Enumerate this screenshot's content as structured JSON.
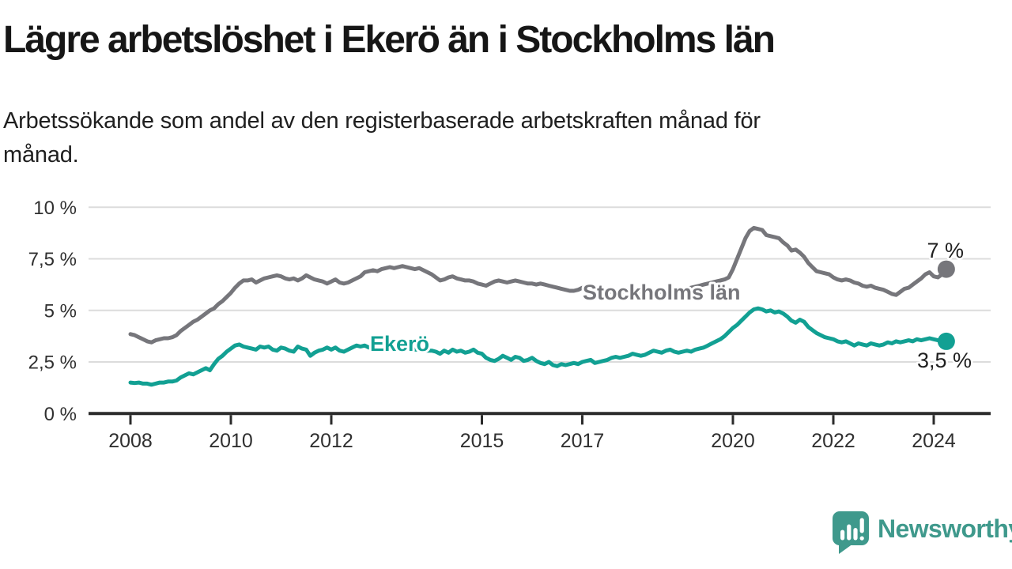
{
  "footer": {
    "brand": "Newsworthy",
    "brand_color": "#3F998C"
  },
  "colors": {
    "background": "#ffffff",
    "grid": "#dcdcdc",
    "axis": "#2b2b2b",
    "tick_label": "#303030",
    "annotation_text": "#1f1f1f",
    "title_text": "#161616"
  },
  "chart_data": {
    "type": "line",
    "title": "Lägre arbetslöshet i Ekerö än i Stockholms län",
    "subtitle": "Arbetssökande som andel av den registerbaserade arbetskraften månad för månad.",
    "unit": "%",
    "ylim": [
      0,
      10
    ],
    "grid": true,
    "legend": "inline-series-labels",
    "y_ticks": [
      {
        "value": 0,
        "label": "0 %"
      },
      {
        "value": 2.5,
        "label": "2,5 %"
      },
      {
        "value": 5,
        "label": "5 %"
      },
      {
        "value": 7.5,
        "label": "7,5 %"
      },
      {
        "value": 10,
        "label": "10 %"
      }
    ],
    "x_ticks": [
      {
        "value": 2008,
        "label": "2008"
      },
      {
        "value": 2010,
        "label": "2010"
      },
      {
        "value": 2012,
        "label": "2012"
      },
      {
        "value": 2015,
        "label": "2015"
      },
      {
        "value": 2017,
        "label": "2017"
      },
      {
        "value": 2020,
        "label": "2020"
      },
      {
        "value": 2022,
        "label": "2022"
      },
      {
        "value": 2024,
        "label": "2024"
      }
    ],
    "x_start_year": 2008,
    "x_end_year": 2024.25,
    "series": [
      {
        "id": "stockholms-lan",
        "name": "Stockholms län",
        "color": "#76767B",
        "end_label": "7 %",
        "end_value": 7.0,
        "start_year": 2008,
        "points_per_year": 12,
        "values": [
          3.85,
          3.8,
          3.7,
          3.6,
          3.5,
          3.45,
          3.55,
          3.6,
          3.65,
          3.65,
          3.7,
          3.8,
          4.0,
          4.15,
          4.3,
          4.45,
          4.55,
          4.7,
          4.85,
          5.0,
          5.1,
          5.3,
          5.45,
          5.65,
          5.85,
          6.1,
          6.3,
          6.45,
          6.45,
          6.5,
          6.35,
          6.45,
          6.55,
          6.6,
          6.65,
          6.7,
          6.65,
          6.55,
          6.5,
          6.55,
          6.45,
          6.55,
          6.7,
          6.6,
          6.5,
          6.45,
          6.4,
          6.3,
          6.4,
          6.5,
          6.35,
          6.3,
          6.35,
          6.45,
          6.55,
          6.65,
          6.85,
          6.9,
          6.95,
          6.9,
          7.0,
          7.05,
          7.1,
          7.05,
          7.1,
          7.15,
          7.1,
          7.05,
          7.0,
          7.05,
          6.95,
          6.85,
          6.75,
          6.6,
          6.45,
          6.5,
          6.6,
          6.65,
          6.55,
          6.5,
          6.45,
          6.45,
          6.4,
          6.3,
          6.25,
          6.2,
          6.3,
          6.4,
          6.45,
          6.4,
          6.35,
          6.4,
          6.45,
          6.4,
          6.35,
          6.3,
          6.3,
          6.25,
          6.3,
          6.25,
          6.2,
          6.15,
          6.1,
          6.05,
          6.0,
          5.95,
          5.95,
          6.0,
          6.1,
          6.05,
          6.05,
          6.0,
          6.0,
          5.95,
          5.95,
          5.9,
          5.9,
          5.9,
          5.9,
          5.9,
          5.9,
          5.85,
          5.85,
          5.85,
          5.9,
          5.9,
          5.9,
          5.9,
          5.95,
          5.95,
          5.95,
          6.0,
          6.0,
          6.05,
          6.1,
          6.15,
          6.2,
          6.25,
          6.3,
          6.35,
          6.4,
          6.45,
          6.5,
          6.6,
          7.0,
          7.5,
          8.0,
          8.5,
          8.85,
          9.0,
          8.95,
          8.9,
          8.65,
          8.6,
          8.55,
          8.5,
          8.3,
          8.15,
          7.9,
          7.95,
          7.8,
          7.6,
          7.3,
          7.1,
          6.9,
          6.85,
          6.8,
          6.75,
          6.6,
          6.5,
          6.45,
          6.5,
          6.45,
          6.35,
          6.3,
          6.2,
          6.15,
          6.2,
          6.1,
          6.05,
          6.0,
          5.9,
          5.8,
          5.75,
          5.9,
          6.05,
          6.1,
          6.25,
          6.4,
          6.55,
          6.75,
          6.85,
          6.65,
          6.6,
          6.75,
          7.0
        ]
      },
      {
        "id": "ekero",
        "name": "Ekerö",
        "color": "#12A093",
        "end_label": "3,5 %",
        "end_value": 3.5,
        "start_year": 2008,
        "points_per_year": 12,
        "values": [
          1.5,
          1.48,
          1.5,
          1.45,
          1.45,
          1.4,
          1.45,
          1.5,
          1.5,
          1.55,
          1.55,
          1.6,
          1.75,
          1.85,
          1.95,
          1.9,
          2.0,
          2.1,
          2.2,
          2.1,
          2.4,
          2.65,
          2.8,
          3.0,
          3.15,
          3.3,
          3.35,
          3.25,
          3.2,
          3.15,
          3.1,
          3.25,
          3.2,
          3.25,
          3.1,
          3.05,
          3.2,
          3.15,
          3.05,
          3.0,
          3.25,
          3.15,
          3.1,
          2.8,
          2.95,
          3.05,
          3.1,
          3.2,
          3.1,
          3.2,
          3.05,
          3.0,
          3.1,
          3.2,
          3.3,
          3.25,
          3.3,
          3.2,
          3.25,
          3.2,
          3.25,
          3.2,
          3.2,
          3.25,
          3.2,
          3.15,
          3.2,
          3.15,
          3.1,
          3.1,
          3.05,
          3.05,
          3.05,
          3.0,
          2.9,
          3.05,
          2.95,
          3.1,
          3.0,
          3.05,
          2.95,
          3.0,
          3.1,
          2.95,
          2.9,
          2.7,
          2.6,
          2.55,
          2.65,
          2.8,
          2.7,
          2.6,
          2.75,
          2.7,
          2.55,
          2.6,
          2.7,
          2.55,
          2.45,
          2.4,
          2.5,
          2.35,
          2.3,
          2.4,
          2.35,
          2.4,
          2.45,
          2.4,
          2.5,
          2.55,
          2.6,
          2.45,
          2.5,
          2.55,
          2.6,
          2.7,
          2.75,
          2.7,
          2.75,
          2.8,
          2.9,
          2.85,
          2.8,
          2.85,
          2.95,
          3.05,
          3.0,
          2.95,
          3.05,
          3.1,
          3.0,
          2.95,
          3.0,
          3.05,
          3.0,
          3.1,
          3.15,
          3.2,
          3.3,
          3.4,
          3.5,
          3.6,
          3.75,
          3.95,
          4.15,
          4.3,
          4.5,
          4.7,
          4.9,
          5.05,
          5.1,
          5.05,
          4.95,
          5.0,
          4.9,
          4.95,
          4.85,
          4.7,
          4.5,
          4.4,
          4.55,
          4.45,
          4.2,
          4.05,
          3.9,
          3.8,
          3.7,
          3.65,
          3.6,
          3.5,
          3.45,
          3.5,
          3.4,
          3.3,
          3.4,
          3.35,
          3.3,
          3.4,
          3.35,
          3.3,
          3.35,
          3.45,
          3.4,
          3.5,
          3.45,
          3.5,
          3.55,
          3.5,
          3.6,
          3.55,
          3.6,
          3.65,
          3.6,
          3.55,
          3.6,
          3.5
        ]
      }
    ]
  }
}
